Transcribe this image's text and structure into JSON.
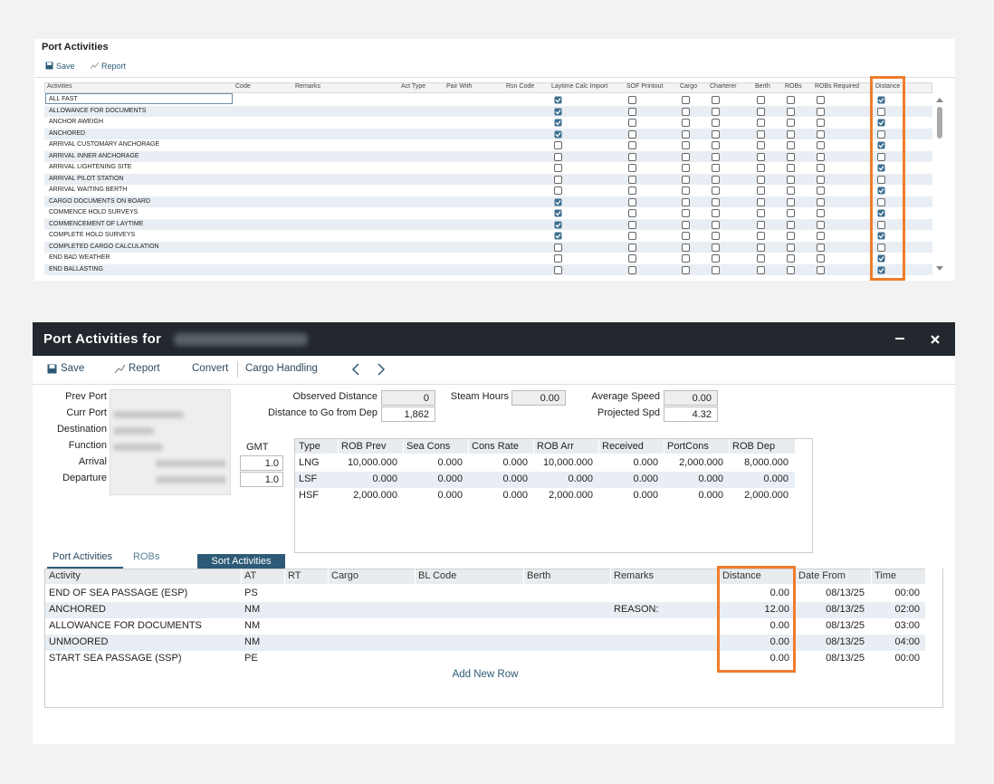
{
  "top_panel": {
    "title": "Port Activities",
    "toolbar": [
      "Save",
      "Report"
    ],
    "columns": [
      "Activities",
      "Code",
      "Remarks",
      "Act Type",
      "Pair With",
      "Rsn Code",
      "Laytime Calc Import",
      "SOF Printout",
      "Cargo",
      "Charterer",
      "Berth",
      "ROBs",
      "ROBs Required",
      "Distance"
    ],
    "rows": [
      {
        "name": "ALL FAST",
        "laytime": true,
        "distance": true
      },
      {
        "name": "ALLOWANCE FOR DOCUMENTS",
        "laytime": true,
        "distance": false
      },
      {
        "name": "ANCHOR AWEIGH",
        "laytime": true,
        "distance": true
      },
      {
        "name": "ANCHORED",
        "laytime": true,
        "distance": false
      },
      {
        "name": "ARRIVAL CUSTOMARY ANCHORAGE",
        "laytime": false,
        "distance": true
      },
      {
        "name": "ARRIVAL INNER ANCHORAGE",
        "laytime": false,
        "distance": false
      },
      {
        "name": "ARRIVAL LIGHTENING SITE",
        "laytime": false,
        "distance": true
      },
      {
        "name": "ARRIVAL PILOT STATION",
        "laytime": false,
        "distance": false
      },
      {
        "name": "ARRIVAL WAITING BERTH",
        "laytime": false,
        "distance": true
      },
      {
        "name": "CARGO DOCUMENTS ON BOARD",
        "laytime": true,
        "distance": false
      },
      {
        "name": "COMMENCE HOLD SURVEYS",
        "laytime": true,
        "distance": true
      },
      {
        "name": "COMMENCEMENT OF LAYTIME",
        "laytime": true,
        "distance": false
      },
      {
        "name": "COMPLETE HOLD SURVEYS",
        "laytime": true,
        "distance": true
      },
      {
        "name": "COMPLETED CARGO CALCULATION",
        "laytime": false,
        "distance": false
      },
      {
        "name": "END BAD WEATHER",
        "laytime": false,
        "distance": true
      },
      {
        "name": "END BALLASTING",
        "laytime": false,
        "distance": true
      }
    ]
  },
  "dialog": {
    "title": "Port Activities for",
    "toolbar": [
      "Save",
      "Report",
      "Convert",
      "Cargo Handling"
    ],
    "fields": [
      "Prev Port",
      "Curr Port",
      "Destination",
      "Function",
      "Arrival",
      "Departure"
    ],
    "gmt": {
      "label": "GMT",
      "values": [
        "1.0",
        "1.0"
      ]
    },
    "stats": [
      {
        "label": "Observed Distance",
        "value": "0"
      },
      {
        "label": "Distance to Go from Dep",
        "value": "1,862"
      },
      {
        "label": "Steam Hours",
        "value": "0.00"
      },
      {
        "label": "Average Speed",
        "value": "0.00"
      },
      {
        "label": "Projected Spd",
        "value": "4.32"
      }
    ],
    "rob_table": {
      "columns": [
        "Type",
        "ROB Prev",
        "Sea Cons",
        "Cons Rate",
        "ROB Arr",
        "Received",
        "PortCons",
        "ROB Dep"
      ],
      "rows": [
        [
          "LNG",
          "10,000.000",
          "0.000",
          "0.000",
          "10,000.000",
          "0.000",
          "2,000.000",
          "8,000.000"
        ],
        [
          "LSF",
          "0.000",
          "0.000",
          "0.000",
          "0.000",
          "0.000",
          "0.000",
          "0.000"
        ],
        [
          "HSF",
          "2,000.000",
          "0.000",
          "0.000",
          "2,000.000",
          "0.000",
          "0.000",
          "2,000.000"
        ]
      ]
    },
    "tabs": [
      "Port Activities",
      "ROBs"
    ],
    "sort_button": "Sort Activities",
    "activity_table": {
      "columns": [
        "Activity",
        "AT",
        "RT",
        "Cargo",
        "BL Code",
        "Berth",
        "Remarks",
        "Distance",
        "Date From",
        "Time"
      ],
      "rows": [
        {
          "activity": "END OF SEA PASSAGE (ESP)",
          "at": "PS",
          "distance": "0.00",
          "date_from": "08/13/25",
          "time": "00:00"
        },
        {
          "activity": "ANCHORED",
          "at": "NM",
          "remarks": "REASON:",
          "distance": "12.00",
          "date_from": "08/13/25",
          "time": "02:00"
        },
        {
          "activity": "ALLOWANCE FOR DOCUMENTS",
          "at": "NM",
          "distance": "0.00",
          "date_from": "08/13/25",
          "time": "03:00"
        },
        {
          "activity": "UNMOORED",
          "at": "NM",
          "distance": "0.00",
          "date_from": "08/13/25",
          "time": "04:00"
        },
        {
          "activity": "START SEA PASSAGE (SSP)",
          "at": "PE",
          "distance": "0.00",
          "date_from": "08/13/25",
          "time": "00:00"
        }
      ],
      "add_row": "Add New Row"
    }
  }
}
